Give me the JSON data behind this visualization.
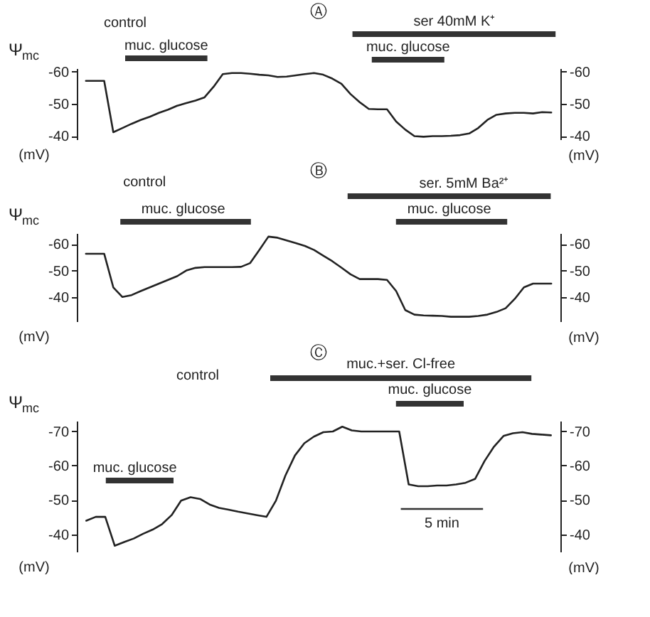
{
  "chart_data": [
    {
      "type": "line",
      "title": "Ⓐ",
      "ylabel": "Ψ$_{mc}$",
      "y2label": "(mV)",
      "tick_labels": "y",
      "annotations": [
        "control",
        "muc. glucose",
        "ser 40mM K⁺",
        "muc. glucose",
        "(mV)"
      ],
      "categories": [
        null,
        null,
        null,
        null,
        null,
        null,
        null,
        null,
        null,
        null,
        null,
        null,
        null,
        null,
        null,
        null,
        null,
        null,
        null,
        null,
        null,
        null,
        null,
        null,
        null,
        null,
        null,
        null,
        null,
        null,
        null,
        null,
        null,
        null,
        null,
        null,
        null,
        null,
        null,
        null,
        null,
        null,
        null,
        null,
        null,
        null,
        null,
        null,
        null,
        null,
        null,
        null
      ],
      "ylim": [
        -39,
        -61
      ],
      "yticks": [
        -60,
        -50,
        -40
      ],
      "y2lim": [
        -39,
        -61
      ],
      "y2ticks": [
        -60,
        -50,
        -40
      ],
      "series": [
        {
          "color": "#222222",
          "values": [
            -57.1,
            -57.1,
            -57.1,
            -41.2,
            -42.5,
            -43.8,
            -45,
            -46,
            -47.2,
            -48.2,
            -49.4,
            -50.2,
            -51,
            -52,
            -55.3,
            -59.2,
            -59.5,
            -59.5,
            -59.3,
            -59,
            -58.8,
            -58.3,
            -58.4,
            -58.8,
            -59.2,
            -59.5,
            -59,
            -57.8,
            -56.2,
            -53,
            -50.5,
            -48.4,
            -48.3,
            -48.3,
            -44.5,
            -42,
            -40,
            -39.8,
            -40,
            -40,
            -40.1,
            -40.3,
            -40.8,
            -42.5,
            -45,
            -46.6,
            -47,
            -47.2,
            -47.2,
            -47,
            -47.4,
            -47.3
          ]
        }
      ]
    },
    {
      "type": "line",
      "title": "Ⓑ",
      "ylabel": "Ψ$_{mc}$",
      "y2label": "(mV)",
      "tick_labels": "y",
      "annotations": [
        "control",
        "muc. glucose",
        "ser. 5mM Ba²⁺",
        "muc. glucose",
        "(mV)"
      ],
      "categories": [
        null,
        null,
        null,
        null,
        null,
        null,
        null,
        null,
        null,
        null,
        null,
        null,
        null,
        null,
        null,
        null,
        null,
        null,
        null,
        null,
        null,
        null,
        null,
        null,
        null,
        null,
        null,
        null,
        null,
        null,
        null,
        null,
        null,
        null,
        null,
        null,
        null,
        null,
        null,
        null,
        null,
        null,
        null,
        null,
        null,
        null,
        null,
        null,
        null,
        null,
        null,
        null
      ],
      "ylim": [
        -31,
        -64
      ],
      "yticks": [
        -60,
        -50,
        -40
      ],
      "y2lim": [
        -31,
        -64
      ],
      "y2ticks": [
        -60,
        -50,
        -40
      ],
      "series": [
        {
          "color": "#222222",
          "values": [
            -56.3,
            -56.3,
            -56.3,
            -43.7,
            -40.1,
            -40.8,
            -42.3,
            -43.7,
            -45.1,
            -46.5,
            -47.9,
            -50,
            -51,
            -51.3,
            -51.3,
            -51.3,
            -51.3,
            -51.4,
            -52.8,
            -57.7,
            -62.7,
            -62.3,
            -61.3,
            -60.3,
            -59.2,
            -57.7,
            -55.6,
            -53.5,
            -51.1,
            -48.6,
            -46.8,
            -46.8,
            -46.8,
            -46.5,
            -42.3,
            -35.2,
            -33.5,
            -33.2,
            -33.1,
            -33,
            -32.7,
            -32.7,
            -32.7,
            -33,
            -33.5,
            -34.5,
            -35.9,
            -39.4,
            -43.7,
            -45.1,
            -45.1,
            -45.1
          ]
        }
      ]
    },
    {
      "type": "line",
      "title": "Ⓒ",
      "ylabel": "Ψ$_{mc}$",
      "y2label": "(mV)",
      "tick_labels": "y",
      "annotations": [
        "control",
        "muc.+ser. Cl-free",
        "muc. glucose",
        "muc. glucose",
        "5 min",
        "(mV)"
      ],
      "categories": [
        null,
        null,
        null,
        null,
        null,
        null,
        null,
        null,
        null,
        null,
        null,
        null,
        null,
        null,
        null,
        null,
        null,
        null,
        null,
        null,
        null,
        null,
        null,
        null,
        null,
        null,
        null,
        null,
        null,
        null,
        null,
        null,
        null,
        null,
        null,
        null,
        null,
        null,
        null,
        null,
        null,
        null,
        null,
        null,
        null,
        null,
        null,
        null,
        null,
        null
      ],
      "ylim": [
        -35,
        -73
      ],
      "yticks": [
        -70,
        -60,
        -50,
        -40
      ],
      "y2lim": [
        -35,
        -73
      ],
      "y2ticks": [
        -70,
        -60,
        -50,
        -40
      ],
      "series": [
        {
          "color": "#222222",
          "values": [
            -44,
            -45.1,
            -45.1,
            -36.7,
            -37.8,
            -38.8,
            -40.2,
            -41.4,
            -43,
            -45.6,
            -49.8,
            -50.8,
            -50.3,
            -48.7,
            -47.7,
            -47.2,
            -46.6,
            -46.1,
            -45.6,
            -45.1,
            -49.8,
            -57.1,
            -62.9,
            -66.5,
            -68.4,
            -69.7,
            -69.9,
            -71.3,
            -70.2,
            -69.9,
            -69.9,
            -69.9,
            -69.9,
            -69.9,
            -54.5,
            -54,
            -54,
            -54.2,
            -54.2,
            -54.5,
            -55,
            -56.1,
            -61.3,
            -65.5,
            -68.6,
            -69.4,
            -69.7,
            -69.2,
            -69,
            -68.8
          ]
        }
      ]
    }
  ]
}
